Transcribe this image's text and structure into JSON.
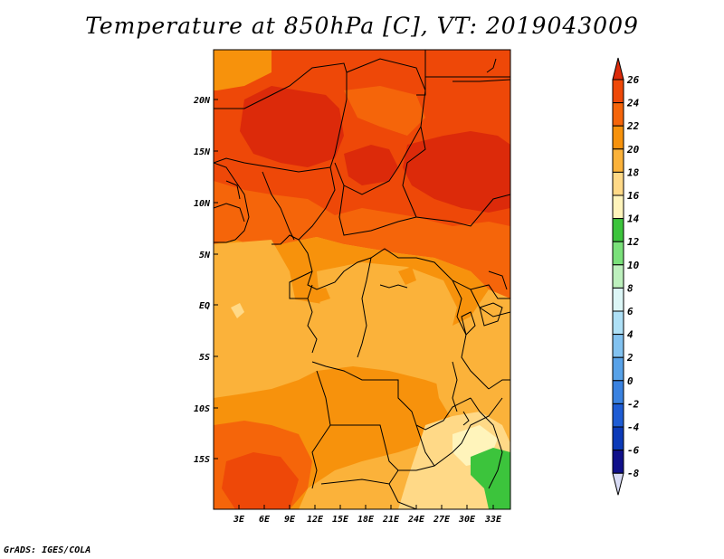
{
  "title": "Temperature at 850hPa [C], VT: 2019043009",
  "credit": "GrADS: IGES/COLA",
  "map": {
    "lat_labels": [
      "20N",
      "15N",
      "10N",
      "5N",
      "EQ",
      "5S",
      "10S",
      "15S"
    ],
    "lon_labels": [
      "3E",
      "6E",
      "9E",
      "12E",
      "15E",
      "18E",
      "21E",
      "24E",
      "27E",
      "30E",
      "33E"
    ]
  },
  "colorbar": {
    "levels": [
      "26",
      "24",
      "22",
      "20",
      "18",
      "16",
      "14",
      "12",
      "10",
      "8",
      "6",
      "4",
      "2",
      "0",
      "-2",
      "-4",
      "-6",
      "-8"
    ],
    "colors": [
      "#dc2a0a",
      "#ee4808",
      "#f5650a",
      "#f7920c",
      "#fbb23a",
      "#ffd987",
      "#fff4bb",
      "#3cc43c",
      "#7ae07a",
      "#bdf0bd",
      "#dcf6f6",
      "#aee0f6",
      "#82c2f0",
      "#58a2e8",
      "#3a82e0",
      "#1e5cd4",
      "#0c3ab8",
      "#10108a",
      "#d9dcf6"
    ]
  }
}
